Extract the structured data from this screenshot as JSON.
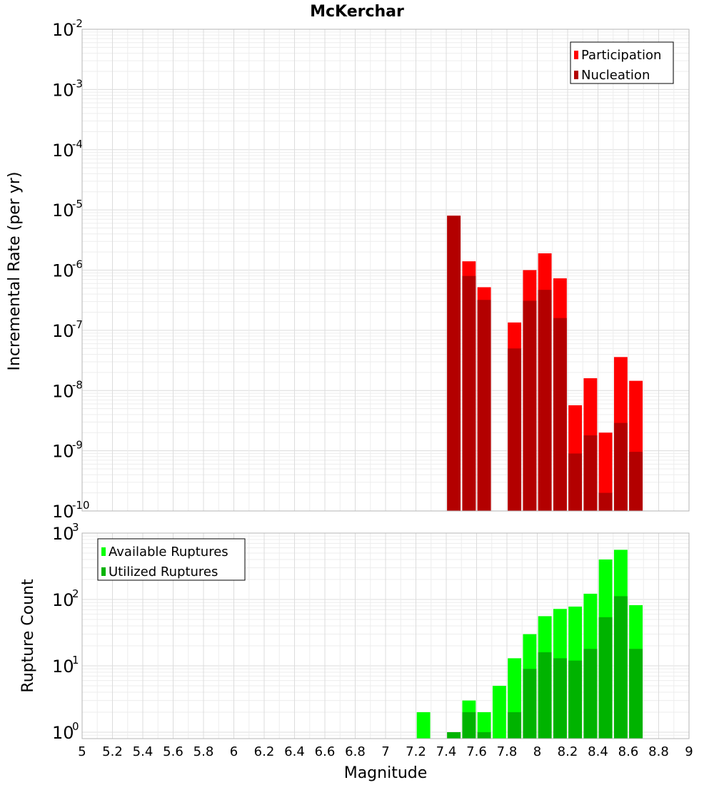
{
  "chart_data": [
    {
      "type": "bar",
      "title": "McKerchar",
      "xlabel": "",
      "ylabel": "Incremental Rate (per yr)",
      "yscale": "log",
      "ylim": [
        1e-10,
        0.01
      ],
      "y_tick_exponents": [
        "-10",
        "-9",
        "-8",
        "-7",
        "-6",
        "-5",
        "-4",
        "-3",
        "-2"
      ],
      "xlim": [
        5,
        9
      ],
      "bin_width": 0.1,
      "legend_position": "top-right",
      "series": [
        {
          "name": "Participation",
          "color": "#ff0000",
          "x": [
            7.45,
            7.55,
            7.65,
            7.85,
            7.95,
            8.05,
            8.15,
            8.25,
            8.35,
            8.45,
            8.55,
            8.65
          ],
          "values": [
            8e-06,
            1.4e-06,
            5.2e-07,
            1.35e-07,
            1e-06,
            1.9e-06,
            7.3e-07,
            5.7e-09,
            1.6e-08,
            2e-09,
            3.6e-08,
            1.45e-08
          ]
        },
        {
          "name": "Nucleation",
          "color": "#b30000",
          "x": [
            7.45,
            7.55,
            7.65,
            7.85,
            7.95,
            8.05,
            8.15,
            8.25,
            8.35,
            8.45,
            8.55,
            8.65
          ],
          "values": [
            8e-06,
            8e-07,
            3.2e-07,
            5e-08,
            3.1e-07,
            4.7e-07,
            1.6e-07,
            9e-10,
            1.8e-09,
            2e-10,
            2.9e-09,
            9.6e-10
          ]
        }
      ]
    },
    {
      "type": "bar",
      "title": "",
      "xlabel": "Magnitude",
      "ylabel": "Rupture Count",
      "yscale": "log",
      "ylim": [
        0.8,
        1000
      ],
      "y_tick_exponents": [
        "0",
        "1",
        "2",
        "3"
      ],
      "xlim": [
        5,
        9
      ],
      "x_ticks": [
        "5",
        "5.2",
        "5.4",
        "5.6",
        "5.8",
        "6",
        "6.2",
        "6.4",
        "6.6",
        "6.8",
        "7",
        "7.2",
        "7.4",
        "7.6",
        "7.8",
        "8",
        "8.2",
        "8.4",
        "8.6",
        "8.8",
        "9"
      ],
      "bin_width": 0.1,
      "legend_position": "top-left",
      "series": [
        {
          "name": "Available Ruptures",
          "color": "#00ff00",
          "x": [
            7.25,
            7.45,
            7.55,
            7.65,
            7.75,
            7.85,
            7.95,
            8.05,
            8.15,
            8.25,
            8.35,
            8.45,
            8.55,
            8.65
          ],
          "values": [
            2,
            1,
            3,
            2,
            5,
            13,
            30,
            56,
            72,
            78,
            122,
            400,
            560,
            82
          ]
        },
        {
          "name": "Utilized Ruptures",
          "color": "#00b300",
          "x": [
            7.45,
            7.55,
            7.65,
            7.85,
            7.95,
            8.05,
            8.15,
            8.25,
            8.35,
            8.45,
            8.55,
            8.65
          ],
          "values": [
            1,
            2,
            1,
            2,
            9,
            16,
            13,
            12,
            18,
            54,
            112,
            18
          ]
        }
      ]
    }
  ]
}
